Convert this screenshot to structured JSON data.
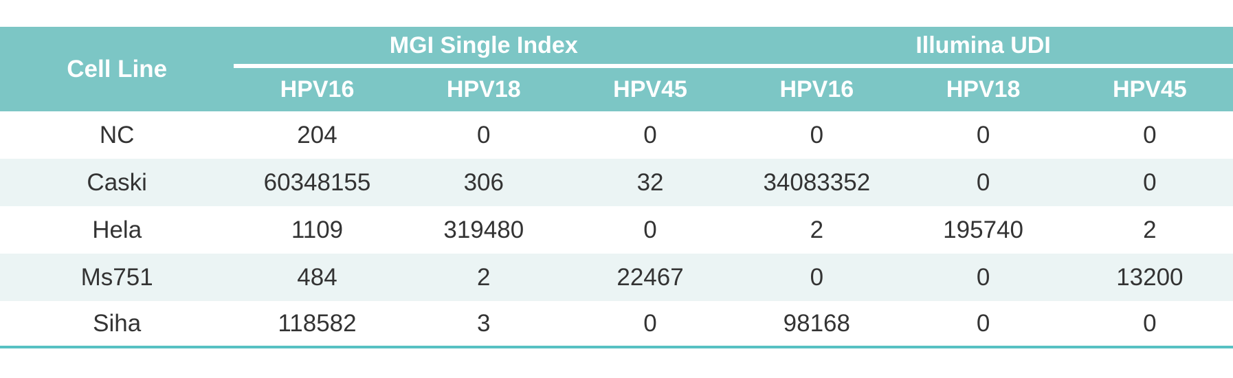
{
  "table": {
    "corner_header": "Cell Line",
    "groups": [
      {
        "label": "MGI Single Index",
        "subcolumns": [
          "HPV16",
          "HPV18",
          "HPV45"
        ]
      },
      {
        "label": "Illumina UDI",
        "subcolumns": [
          "HPV16",
          "HPV18",
          "HPV45"
        ]
      }
    ],
    "rows": [
      {
        "cell_line": "NC",
        "values": [
          "204",
          "0",
          "0",
          "0",
          "0",
          "0"
        ]
      },
      {
        "cell_line": "Caski",
        "values": [
          "60348155",
          "306",
          "32",
          "34083352",
          "0",
          "0"
        ]
      },
      {
        "cell_line": "Hela",
        "values": [
          "1109",
          "319480",
          "0",
          "2",
          "195740",
          "2"
        ]
      },
      {
        "cell_line": "Ms751",
        "values": [
          "484",
          "2",
          "22467",
          "0",
          "0",
          "13200"
        ]
      },
      {
        "cell_line": "Siha",
        "values": [
          "118582",
          "3",
          "0",
          "98168",
          "0",
          "0"
        ]
      }
    ]
  },
  "chart_data": {
    "type": "table",
    "title": "",
    "columns": [
      "Cell Line",
      "MGI Single Index HPV16",
      "MGI Single Index HPV18",
      "MGI Single Index HPV45",
      "Illumina UDI HPV16",
      "Illumina UDI HPV18",
      "Illumina UDI HPV45"
    ],
    "rows": [
      [
        "NC",
        204,
        0,
        0,
        0,
        0,
        0
      ],
      [
        "Caski",
        60348155,
        306,
        32,
        34083352,
        0,
        0
      ],
      [
        "Hela",
        1109,
        319480,
        0,
        2,
        195740,
        2
      ],
      [
        "Ms751",
        484,
        2,
        22467,
        0,
        0,
        13200
      ],
      [
        "Siha",
        118582,
        3,
        0,
        98168,
        0,
        0
      ]
    ]
  },
  "colors": {
    "header_bg": "#7CC6C5",
    "row_alt_bg": "#EBF4F4",
    "bottom_border": "#57C1C3",
    "header_text": "#FFFFFF",
    "body_text": "#333333"
  }
}
